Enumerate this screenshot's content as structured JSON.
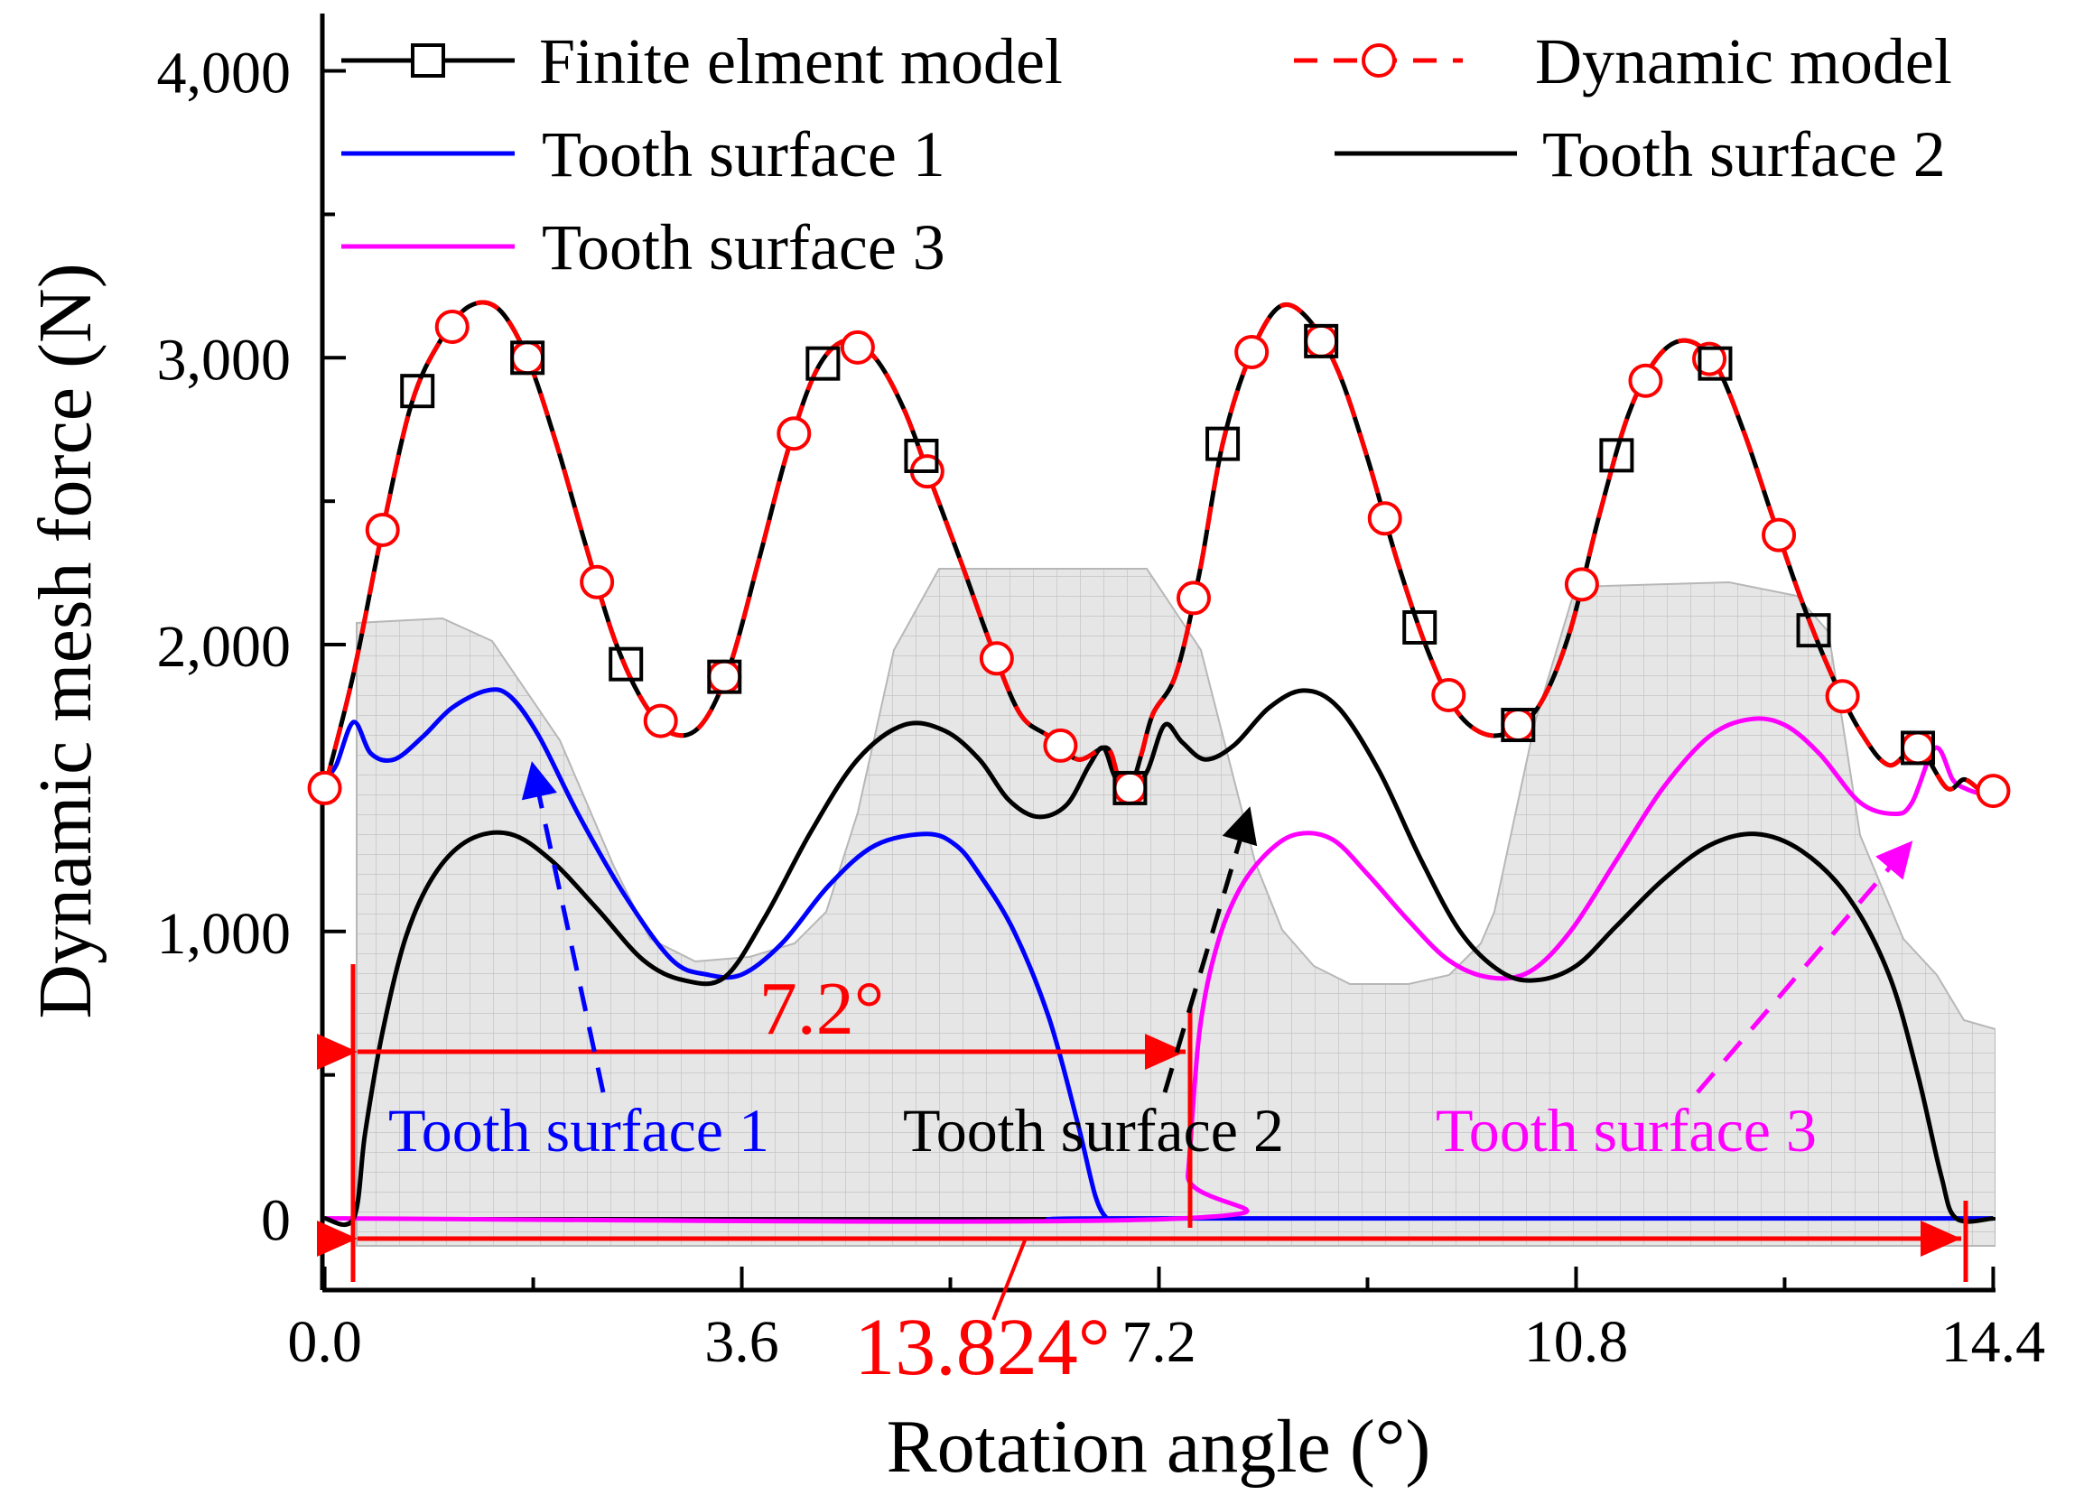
{
  "chart_data": {
    "type": "line",
    "xlabel": "Rotation angle (°)",
    "ylabel": "Dynamic mesh force (N)",
    "xlim": [
      -0.02,
      14.42
    ],
    "ylim": [
      -250,
      4200
    ],
    "xticks": [
      0.0,
      3.6,
      7.2,
      10.8,
      14.4
    ],
    "xtick_labels": [
      "0.0",
      "3.6",
      "7.2",
      "10.8",
      "14.4"
    ],
    "yticks": [
      0,
      1000,
      2000,
      3000,
      4000
    ],
    "ytick_labels": [
      "0",
      "1,000",
      "2,000",
      "3,000",
      "4,000"
    ],
    "legend": {
      "placement": "top",
      "entries": [
        {
          "id": "fem",
          "label": "Finite elment model",
          "style": "black solid line with square markers"
        },
        {
          "id": "dyn",
          "label": "Dynamic model",
          "style": "red dashed line with circle markers"
        },
        {
          "id": "ts1",
          "label": "Tooth surface 1",
          "style": "blue solid line"
        },
        {
          "id": "ts2",
          "label": "Tooth surface 2",
          "style": "black solid line"
        },
        {
          "id": "ts3",
          "label": "Tooth surface 3",
          "style": "magenta solid line"
        }
      ]
    },
    "series": [
      {
        "name": "Total (Finite elment model / Dynamic model)",
        "color": "#000000",
        "x": [
          0.0,
          0.25,
          0.5,
          0.75,
          1.0,
          1.25,
          1.5,
          1.75,
          2.0,
          2.25,
          2.5,
          2.75,
          3.0,
          3.25,
          3.5,
          3.75,
          4.0,
          4.25,
          4.5,
          4.75,
          5.0,
          5.25,
          5.5,
          5.75,
          6.0,
          6.25,
          6.5,
          6.75,
          6.85,
          6.95,
          7.05,
          7.15,
          7.35,
          7.55,
          7.75,
          8.0,
          8.25,
          8.5,
          8.75,
          9.0,
          9.25,
          9.5,
          9.75,
          10.0,
          10.25,
          10.5,
          10.75,
          11.0,
          11.25,
          11.5,
          11.75,
          12.0,
          12.25,
          12.5,
          12.75,
          13.0,
          13.25,
          13.5,
          13.75,
          14.0,
          14.15,
          14.3,
          14.4
        ],
        "y": [
          1500,
          1900,
          2400,
          2840,
          3060,
          3180,
          3170,
          3000,
          2700,
          2350,
          2020,
          1800,
          1690,
          1720,
          1930,
          2300,
          2680,
          2960,
          3060,
          3000,
          2820,
          2550,
          2280,
          2000,
          1760,
          1680,
          1600,
          1640,
          1540,
          1500,
          1620,
          1760,
          1900,
          2250,
          2700,
          3020,
          3180,
          3130,
          2950,
          2650,
          2300,
          2000,
          1780,
          1690,
          1700,
          1800,
          2050,
          2450,
          2800,
          3000,
          3060,
          2980,
          2740,
          2440,
          2150,
          1900,
          1700,
          1580,
          1640,
          1500,
          1530,
          1490,
          1490
        ]
      },
      {
        "name": "Tooth surface 1",
        "color": "#0000ff",
        "x": [
          0.0,
          0.1,
          0.25,
          0.4,
          0.6,
          0.85,
          1.1,
          1.4,
          1.6,
          1.85,
          2.2,
          2.6,
          3.0,
          3.3,
          3.6,
          3.95,
          4.35,
          4.75,
          5.2,
          5.45,
          5.65,
          5.95,
          6.25,
          6.5,
          6.65,
          6.75,
          6.82,
          14.4
        ],
        "y": [
          1530,
          1580,
          1730,
          1620,
          1600,
          1680,
          1780,
          1840,
          1820,
          1680,
          1400,
          1120,
          900,
          850,
          850,
          960,
          1160,
          1300,
          1340,
          1300,
          1200,
          1000,
          700,
          330,
          80,
          0,
          0,
          0
        ]
      },
      {
        "name": "Tooth surface 2",
        "color": "#000000",
        "x": [
          0.0,
          0.25,
          0.35,
          0.5,
          0.7,
          0.95,
          1.25,
          1.6,
          1.95,
          2.35,
          2.75,
          3.1,
          3.45,
          3.8,
          4.2,
          4.6,
          5.0,
          5.35,
          5.65,
          5.9,
          6.15,
          6.4,
          6.6,
          6.72,
          6.82,
          6.95,
          7.1,
          7.25,
          7.4,
          7.6,
          7.85,
          8.15,
          8.45,
          8.75,
          9.1,
          9.45,
          9.8,
          10.15,
          10.45,
          10.8,
          11.15,
          11.55,
          11.95,
          12.35,
          12.75,
          13.15,
          13.5,
          13.75,
          13.95,
          14.08,
          14.4
        ],
        "y": [
          0,
          0,
          300,
          650,
          980,
          1200,
          1320,
          1340,
          1250,
          1080,
          900,
          830,
          840,
          1050,
          1350,
          1600,
          1720,
          1700,
          1600,
          1460,
          1400,
          1440,
          1580,
          1640,
          1540,
          1480,
          1560,
          1720,
          1660,
          1600,
          1650,
          1780,
          1840,
          1780,
          1560,
          1260,
          1000,
          860,
          830,
          880,
          1020,
          1180,
          1300,
          1340,
          1280,
          1120,
          850,
          500,
          150,
          0,
          0
        ]
      },
      {
        "name": "Tooth surface 3",
        "color": "#ff00ff",
        "x": [
          0.0,
          7.4,
          7.45,
          7.55,
          7.7,
          7.9,
          8.15,
          8.4,
          8.7,
          9.0,
          9.35,
          9.7,
          10.05,
          10.4,
          10.75,
          11.15,
          11.55,
          11.95,
          12.3,
          12.6,
          12.9,
          13.25,
          13.55,
          13.7,
          13.9,
          14.05,
          14.15,
          14.3,
          14.4
        ],
        "y": [
          0,
          0,
          150,
          650,
          950,
          1150,
          1280,
          1340,
          1320,
          1200,
          1040,
          900,
          840,
          860,
          1000,
          1250,
          1500,
          1680,
          1740,
          1720,
          1620,
          1450,
          1410,
          1450,
          1640,
          1530,
          1500,
          1480,
          1480
        ]
      }
    ],
    "markers": {
      "square_x": [
        0.8,
        1.75,
        2.6,
        3.45,
        4.3,
        5.15,
        6.95,
        7.75,
        8.6,
        9.45,
        10.3,
        11.15,
        12.0,
        12.85,
        13.75
      ],
      "circle_x": [
        0.0,
        0.5,
        1.1,
        1.75,
        2.35,
        2.9,
        3.45,
        4.05,
        4.6,
        5.2,
        5.8,
        6.35,
        6.95,
        7.5,
        8.0,
        8.6,
        9.15,
        9.7,
        10.3,
        10.85,
        11.4,
        11.95,
        12.55,
        13.1,
        13.75,
        14.4
      ]
    },
    "annotations": [
      {
        "id": "span-7-2",
        "text": "7.2°",
        "color": "#ff0000",
        "x_from": 0.25,
        "x_to": 7.4
      },
      {
        "id": "span-13-824",
        "text": "13.824°",
        "color": "#ff0000",
        "x_from": 0.25,
        "x_to": 14.08
      },
      {
        "id": "label-ts1",
        "text": "Tooth surface 1",
        "color": "#0000ff"
      },
      {
        "id": "label-ts2",
        "text": "Tooth surface 2",
        "color": "#000000"
      },
      {
        "id": "label-ts3",
        "text": "Tooth surface 3",
        "color": "#ff00ff"
      }
    ]
  }
}
